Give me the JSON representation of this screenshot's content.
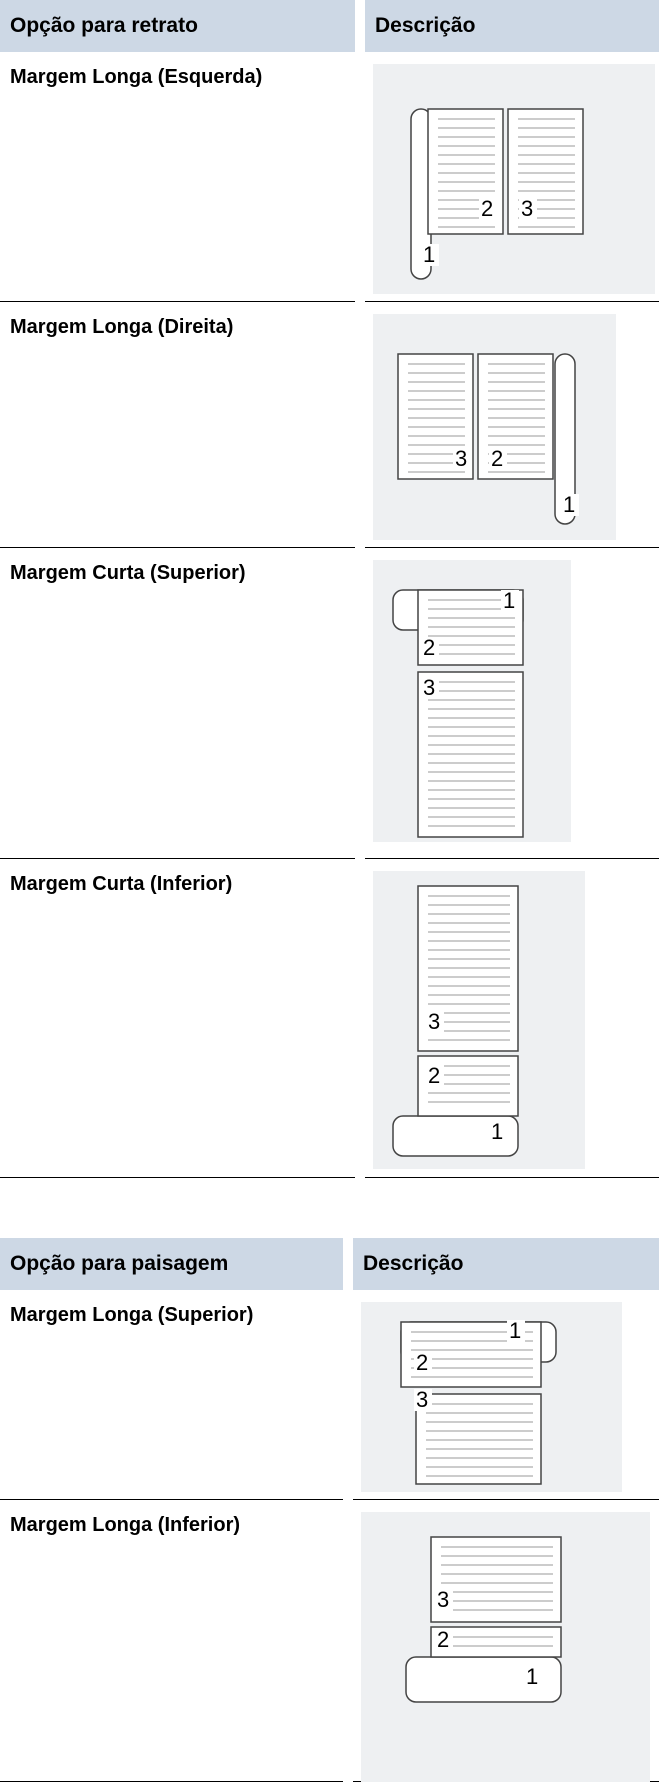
{
  "tables": [
    {
      "header": [
        "Opção para retrato",
        "Descrição"
      ],
      "rows": [
        {
          "option": "Margem Longa (Esquerda)",
          "numbers": [
            "2",
            "3",
            "1"
          ]
        },
        {
          "option": "Margem Longa (Direita)",
          "numbers": [
            "3",
            "2",
            "1"
          ]
        },
        {
          "option": "Margem Curta (Superior)",
          "numbers": [
            "1",
            "2",
            "3"
          ]
        },
        {
          "option": "Margem Curta (Inferior)",
          "numbers": [
            "3",
            "2",
            "1"
          ]
        }
      ]
    },
    {
      "header": [
        "Opção para paisagem",
        "Descrição"
      ],
      "rows": [
        {
          "option": "Margem Longa (Superior)",
          "numbers": [
            "1",
            "2",
            "3"
          ]
        },
        {
          "option": "Margem Longa (Inferior)",
          "numbers": [
            "3",
            "2",
            "1"
          ]
        }
      ]
    }
  ]
}
